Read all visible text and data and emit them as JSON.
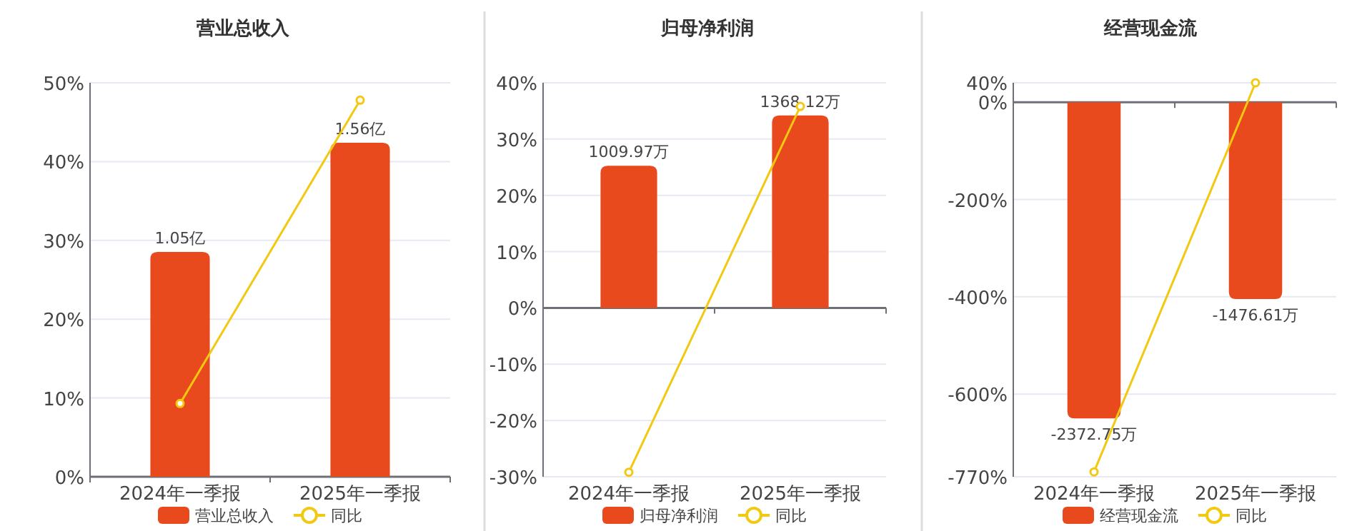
{
  "chart_data": [
    {
      "type": "bar",
      "title": "营业总收入",
      "categories": [
        "2024年一季报",
        "2025年一季报"
      ],
      "series": [
        {
          "name": "营业总收入",
          "color": "#e84a1e",
          "values": [
            1.05,
            1.56
          ],
          "value_labels": [
            "1.05亿",
            "1.56亿"
          ],
          "axis": "y2"
        },
        {
          "name": "同比",
          "type": "line",
          "color": "#f2c811",
          "values": [
            9.3,
            47.8
          ],
          "marker": "circle"
        }
      ],
      "ylim": [
        0,
        50
      ],
      "yticks": [
        {
          "value": 0,
          "label": "0%"
        },
        {
          "value": 10,
          "label": "10%"
        },
        {
          "value": 20,
          "label": "20%"
        },
        {
          "value": 30,
          "label": "30%"
        },
        {
          "value": 40,
          "label": "40%"
        },
        {
          "value": 50,
          "label": "50%"
        }
      ],
      "y2lim": [
        0,
        1.84
      ],
      "grid": "y",
      "legend": "bottom"
    },
    {
      "type": "bar",
      "title": "归母净利润",
      "categories": [
        "2024年一季报",
        "2025年一季报"
      ],
      "series": [
        {
          "name": "归母净利润",
          "color": "#e84a1e",
          "values": [
            1009.97,
            1368.12
          ],
          "value_labels": [
            "1009.97万",
            "1368.12万"
          ],
          "axis": "y2"
        },
        {
          "name": "同比",
          "type": "line",
          "color": "#f2c811",
          "values": [
            -29.2,
            35.8
          ],
          "marker": "circle"
        }
      ],
      "ylim": [
        -30,
        40
      ],
      "yticks": [
        {
          "value": -30,
          "label": "-30%"
        },
        {
          "value": -20,
          "label": "-20%"
        },
        {
          "value": -10,
          "label": "-10%"
        },
        {
          "value": 0,
          "label": "0%"
        },
        {
          "value": 10,
          "label": "10%"
        },
        {
          "value": 20,
          "label": "20%"
        },
        {
          "value": 30,
          "label": "30%"
        },
        {
          "value": 40,
          "label": "40%"
        }
      ],
      "y2lim": [
        -1200,
        1600
      ],
      "grid": "y",
      "legend": "bottom"
    },
    {
      "type": "bar",
      "title": "经营现金流",
      "categories": [
        "2024年一季报",
        "2025年一季报"
      ],
      "series": [
        {
          "name": "经营现金流",
          "color": "#e84a1e",
          "values": [
            -2372.75,
            -1476.61
          ],
          "value_labels": [
            "-2372.75万",
            "-1476.61万"
          ],
          "axis": "y2"
        },
        {
          "name": "同比",
          "type": "line",
          "color": "#f2c811",
          "values": [
            -760,
            40
          ],
          "marker": "circle"
        }
      ],
      "ylim": [
        -770,
        40
      ],
      "yticks": [
        {
          "value": -770,
          "label": "-770%"
        },
        {
          "value": -600,
          "label": "-600%"
        },
        {
          "value": -400,
          "label": "-400%"
        },
        {
          "value": -200,
          "label": "-200%"
        },
        {
          "value": 0,
          "label": "0%"
        },
        {
          "value": 40,
          "label": "40%"
        }
      ],
      "y2lim": [
        -2810,
        146
      ],
      "grid": "y",
      "legend": "bottom"
    }
  ]
}
